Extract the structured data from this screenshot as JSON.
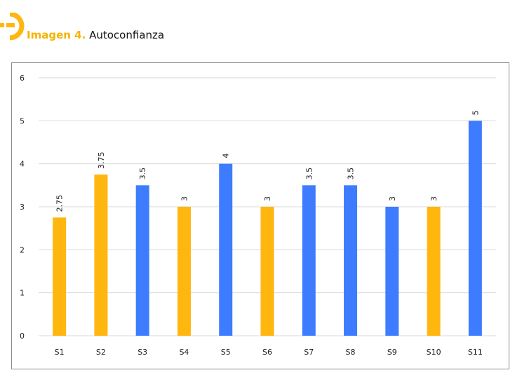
{
  "caption": {
    "label": "Imagen 4.",
    "title": "Autoconfianza"
  },
  "colors": {
    "accent": "#ffb60f",
    "blue": "#3d7cff",
    "grid": "#d9d9d9"
  },
  "icons": {
    "logo": "yellow-semicircle-logo-icon"
  },
  "chart_data": {
    "type": "bar",
    "title": "",
    "xlabel": "",
    "ylabel": "",
    "ylim": [
      0,
      6
    ],
    "yticks": [
      0,
      1,
      2,
      3,
      4,
      5,
      6
    ],
    "grid": true,
    "legend": "none",
    "categories": [
      "S1",
      "S2",
      "S3",
      "S4",
      "S5",
      "S6",
      "S7",
      "S8",
      "S9",
      "S10",
      "S11"
    ],
    "values": [
      2.75,
      3.75,
      3.5,
      3,
      4,
      3,
      3.5,
      3.5,
      3,
      3,
      5
    ],
    "value_labels": [
      "2.75",
      "3.75",
      "3.5",
      "3",
      "4",
      "3",
      "3.5",
      "3.5",
      "3",
      "3",
      "5"
    ],
    "bar_colors": [
      "#ffb60f",
      "#ffb60f",
      "#3d7cff",
      "#ffb60f",
      "#3d7cff",
      "#ffb60f",
      "#3d7cff",
      "#3d7cff",
      "#3d7cff",
      "#ffb60f",
      "#3d7cff"
    ]
  }
}
